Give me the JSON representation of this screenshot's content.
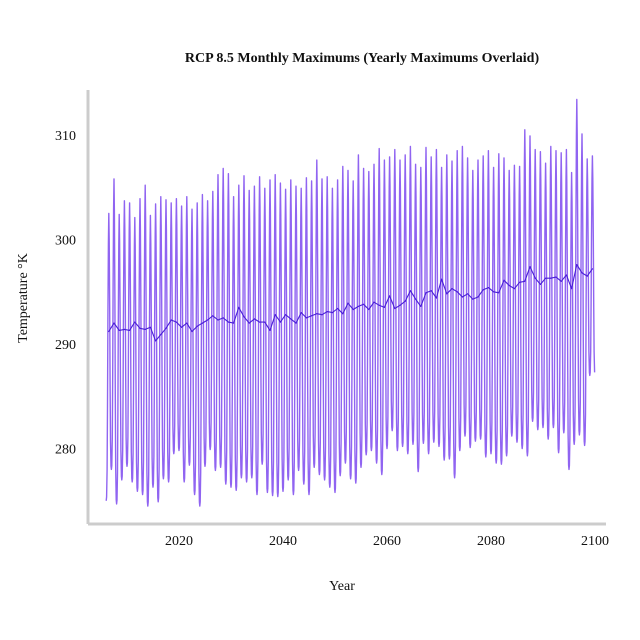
{
  "chart_data": {
    "type": "line",
    "title": "RCP 8.5 Monthly Maximums (Yearly Maximums Overlaid)",
    "xlabel": "Year",
    "ylabel": "Temperature °K",
    "xlim": [
      2005,
      2100
    ],
    "ylim": [
      273.5,
      314.5
    ],
    "x_ticks": [
      2020,
      2040,
      2060,
      2080,
      2100
    ],
    "y_ticks": [
      280,
      290,
      300,
      310
    ],
    "grid": false,
    "legend": "none",
    "series": [
      {
        "role": "monthly",
        "color": "#8a5cf0",
        "x": [
          2006,
          2007,
          2008,
          2009,
          2010,
          2011,
          2012,
          2013,
          2014,
          2015,
          2016,
          2017,
          2018,
          2019,
          2020,
          2021,
          2022,
          2023,
          2024,
          2025,
          2026,
          2027,
          2028,
          2029,
          2030,
          2031,
          2032,
          2033,
          2034,
          2035,
          2036,
          2037,
          2038,
          2039,
          2040,
          2041,
          2042,
          2043,
          2044,
          2045,
          2046,
          2047,
          2048,
          2049,
          2050,
          2051,
          2052,
          2053,
          2054,
          2055,
          2056,
          2057,
          2058,
          2059,
          2060,
          2061,
          2062,
          2063,
          2064,
          2065,
          2066,
          2067,
          2068,
          2069,
          2070,
          2071,
          2072,
          2073,
          2074,
          2075,
          2076,
          2077,
          2078,
          2079,
          2080,
          2081,
          2082,
          2083,
          2084,
          2085,
          2086,
          2087,
          2088,
          2089,
          2090,
          2091,
          2092,
          2093,
          2094,
          2095,
          2096,
          2097,
          2098,
          2099
        ],
        "summer_max": [
          302.5,
          305.8,
          302.4,
          303.7,
          303.5,
          302.1,
          303.9,
          305.2,
          302.3,
          303.4,
          304.1,
          303.8,
          303.5,
          303.9,
          303.2,
          304.1,
          302.9,
          303.5,
          304.3,
          303.7,
          304.6,
          306.2,
          306.8,
          306.3,
          304.1,
          305.2,
          306.1,
          304.7,
          305.1,
          306.0,
          304.9,
          305.7,
          306.2,
          305.4,
          304.8,
          305.7,
          305.1,
          304.9,
          305.9,
          305.6,
          307.6,
          305.8,
          306.0,
          304.9,
          305.7,
          307.0,
          306.6,
          305.6,
          308.1,
          306.8,
          306.5,
          307.2,
          308.7,
          307.6,
          307.9,
          308.6,
          307.6,
          308.1,
          308.9,
          307.2,
          306.9,
          308.8,
          307.9,
          308.6,
          306.9,
          308.1,
          307.5,
          308.5,
          308.9,
          307.8,
          306.6,
          307.6,
          308.0,
          308.5,
          306.9,
          308.2,
          307.8,
          306.6,
          307.1,
          307.0,
          310.5,
          309.9,
          308.6,
          308.4,
          307.3,
          308.9,
          308.5,
          308.3,
          308.6,
          306.4,
          313.4,
          310.1,
          307.7,
          308.0
        ],
        "winter_min": [
          275.0,
          278.0,
          274.7,
          277.0,
          278.3,
          276.8,
          275.9,
          275.6,
          274.5,
          276.3,
          274.9,
          277.1,
          276.8,
          279.5,
          279.8,
          276.8,
          278.4,
          275.6,
          274.5,
          278.3,
          279.9,
          277.9,
          278.2,
          276.6,
          276.3,
          276.0,
          277.2,
          276.8,
          277.2,
          275.6,
          278.5,
          275.8,
          275.5,
          275.4,
          275.9,
          277.0,
          275.6,
          277.9,
          276.6,
          275.6,
          278.2,
          277.5,
          277.0,
          276.3,
          275.8,
          277.4,
          278.6,
          277.1,
          276.7,
          278.2,
          279.4,
          279.8,
          278.6,
          277.5,
          280.0,
          281.7,
          279.8,
          280.2,
          279.5,
          280.4,
          277.8,
          280.5,
          279.5,
          280.6,
          280.2,
          278.9,
          279.0,
          277.2,
          279.8,
          281.2,
          280.1,
          280.7,
          280.9,
          279.2,
          279.5,
          278.6,
          278.5,
          279.3,
          281.2,
          280.6,
          280.0,
          279.3,
          282.6,
          281.8,
          282.0,
          280.9,
          282.0,
          279.6,
          281.5,
          278.0,
          280.4,
          281.3,
          280.3,
          287.0
        ]
      },
      {
        "role": "yearly",
        "color": "#4a1fd8",
        "x": [
          2006,
          2007,
          2008,
          2009,
          2010,
          2011,
          2012,
          2013,
          2014,
          2015,
          2016,
          2017,
          2018,
          2019,
          2020,
          2021,
          2022,
          2023,
          2024,
          2025,
          2026,
          2027,
          2028,
          2029,
          2030,
          2031,
          2032,
          2033,
          2034,
          2035,
          2036,
          2037,
          2038,
          2039,
          2040,
          2041,
          2042,
          2043,
          2044,
          2045,
          2046,
          2047,
          2048,
          2049,
          2050,
          2051,
          2052,
          2053,
          2054,
          2055,
          2056,
          2057,
          2058,
          2059,
          2060,
          2061,
          2062,
          2063,
          2064,
          2065,
          2066,
          2067,
          2068,
          2069,
          2070,
          2071,
          2072,
          2073,
          2074,
          2075,
          2076,
          2077,
          2078,
          2079,
          2080,
          2081,
          2082,
          2083,
          2084,
          2085,
          2086,
          2087,
          2088,
          2089,
          2090,
          2091,
          2092,
          2093,
          2094,
          2095,
          2096,
          2097,
          2098,
          2099
        ],
        "values": [
          291.2,
          292.0,
          291.3,
          291.4,
          291.3,
          292.1,
          291.5,
          291.4,
          291.6,
          290.3,
          290.9,
          291.5,
          292.3,
          292.1,
          291.6,
          292.0,
          291.2,
          291.7,
          292.0,
          292.3,
          292.7,
          292.3,
          292.5,
          292.1,
          292.0,
          293.5,
          292.6,
          292.0,
          292.4,
          292.1,
          292.1,
          291.3,
          292.8,
          292.1,
          292.8,
          292.4,
          292.0,
          293.0,
          292.5,
          292.7,
          292.9,
          292.8,
          293.1,
          293.0,
          293.4,
          292.9,
          293.9,
          293.3,
          293.6,
          293.8,
          293.3,
          294.0,
          293.7,
          293.5,
          294.6,
          293.4,
          293.7,
          294.1,
          295.1,
          294.3,
          293.6,
          294.9,
          295.1,
          294.4,
          296.2,
          294.8,
          295.3,
          295.0,
          294.5,
          294.8,
          294.3,
          294.5,
          295.2,
          295.4,
          295.0,
          294.9,
          296.1,
          295.6,
          295.3,
          295.9,
          296.0,
          297.4,
          296.3,
          295.7,
          296.3,
          296.3,
          296.4,
          296.0,
          296.6,
          295.3,
          297.6,
          296.8,
          296.5,
          297.2
        ]
      }
    ]
  }
}
